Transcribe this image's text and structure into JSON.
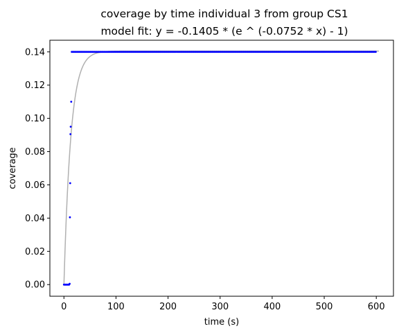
{
  "chart_data": {
    "type": "scatter",
    "title": "coverage by time individual 3 from group CS1",
    "subtitle": "model fit: y = -0.1405 * (e ^ (-0.0752 * x) - 1)",
    "xlabel": "time (s)",
    "ylabel": "coverage",
    "xlim": [
      -27,
      633
    ],
    "ylim": [
      -0.007,
      0.147
    ],
    "xticks": [
      0,
      100,
      200,
      300,
      400,
      500,
      600
    ],
    "yticks": [
      0.0,
      0.02,
      0.04,
      0.06,
      0.08,
      0.1,
      0.12,
      0.14
    ],
    "xtick_labels": [
      "0",
      "100",
      "200",
      "300",
      "400",
      "500",
      "600"
    ],
    "ytick_labels": [
      "0.00",
      "0.02",
      "0.04",
      "0.06",
      "0.08",
      "0.10",
      "0.12",
      "0.14"
    ],
    "grid": false,
    "series": [
      {
        "kind": "scatter",
        "color": "#0000ff",
        "points": [
          [
            0,
            0
          ],
          [
            1,
            0
          ],
          [
            2,
            0
          ],
          [
            3,
            0
          ],
          [
            4,
            0
          ],
          [
            5,
            0
          ],
          [
            6,
            0
          ],
          [
            7,
            0
          ],
          [
            8,
            0
          ],
          [
            9,
            0
          ],
          [
            10,
            0
          ],
          [
            11,
            0.0005
          ],
          [
            11.5,
            0.0405
          ],
          [
            12,
            0.061
          ],
          [
            12.5,
            0.0905
          ],
          [
            13,
            0.095
          ],
          [
            14,
            0.11
          ]
        ],
        "plateau": {
          "x_start": 15,
          "x_end": 600,
          "step": 2,
          "y": 0.14
        }
      },
      {
        "kind": "fit",
        "color": "#b0b0b0",
        "formula": {
          "a": -0.1405,
          "k": -0.0752
        },
        "x_range": [
          0,
          605
        ]
      }
    ]
  }
}
